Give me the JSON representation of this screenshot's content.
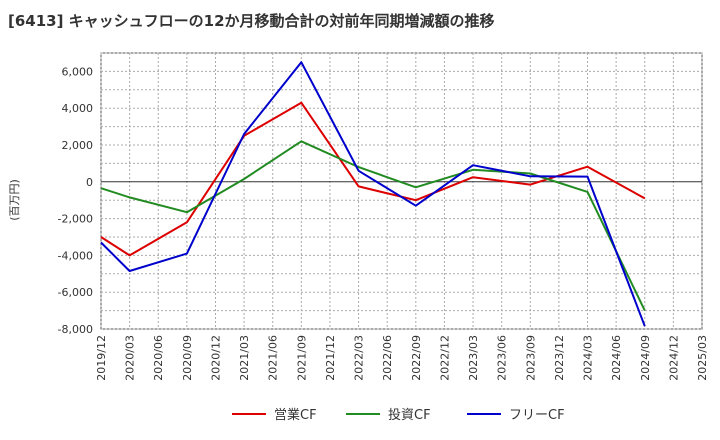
{
  "chart_data": {
    "type": "line",
    "title": "[6413]  キャッシュフローの12か月移動合計の対前年同期増減額の推移",
    "ylabel": "(百万円)",
    "xlabel": "",
    "ylim": [
      -8000,
      7000
    ],
    "yticks": [
      -8000,
      -6000,
      -4000,
      -2000,
      0,
      2000,
      4000,
      6000
    ],
    "ytick_labels": [
      "-8,000",
      "-6,000",
      "-4,000",
      "-2,000",
      "0",
      "2,000",
      "4,000",
      "6,000"
    ],
    "x_labels": [
      "2019/12",
      "2020/03",
      "2020/06",
      "2020/09",
      "2020/12",
      "2021/03",
      "2021/06",
      "2021/09",
      "2021/12",
      "2022/03",
      "2022/06",
      "2022/09",
      "2022/12",
      "2023/03",
      "2023/06",
      "2023/09",
      "2023/12",
      "2024/03",
      "2024/06",
      "2024/09",
      "2024/12",
      "2025/03"
    ],
    "grid": true,
    "legend_position": "bottom",
    "series": [
      {
        "name": "営業CF",
        "color": "#dd0000",
        "points": [
          {
            "x": "2019/12",
            "y": -3000
          },
          {
            "x": "2020/03",
            "y": -4000
          },
          {
            "x": "2020/09",
            "y": -2200
          },
          {
            "x": "2021/03",
            "y": 2500
          },
          {
            "x": "2021/09",
            "y": 4300
          },
          {
            "x": "2022/03",
            "y": -250
          },
          {
            "x": "2022/09",
            "y": -1000
          },
          {
            "x": "2023/03",
            "y": 250
          },
          {
            "x": "2023/09",
            "y": -150
          },
          {
            "x": "2024/03",
            "y": 820
          },
          {
            "x": "2024/09",
            "y": -900
          }
        ]
      },
      {
        "name": "投資CF",
        "color": "#228b22",
        "points": [
          {
            "x": "2019/12",
            "y": -350
          },
          {
            "x": "2020/03",
            "y": -850
          },
          {
            "x": "2020/09",
            "y": -1650
          },
          {
            "x": "2021/03",
            "y": 150
          },
          {
            "x": "2021/09",
            "y": 2200
          },
          {
            "x": "2022/03",
            "y": 800
          },
          {
            "x": "2022/09",
            "y": -300
          },
          {
            "x": "2023/03",
            "y": 650
          },
          {
            "x": "2023/09",
            "y": 450
          },
          {
            "x": "2024/03",
            "y": -550
          },
          {
            "x": "2024/09",
            "y": -7000
          }
        ]
      },
      {
        "name": "フリーCF",
        "color": "#0000cc",
        "points": [
          {
            "x": "2019/12",
            "y": -3300
          },
          {
            "x": "2020/03",
            "y": -4850
          },
          {
            "x": "2020/09",
            "y": -3900
          },
          {
            "x": "2021/03",
            "y": 2600
          },
          {
            "x": "2021/09",
            "y": 6500
          },
          {
            "x": "2022/03",
            "y": 600
          },
          {
            "x": "2022/09",
            "y": -1300
          },
          {
            "x": "2023/03",
            "y": 900
          },
          {
            "x": "2023/09",
            "y": 300
          },
          {
            "x": "2024/03",
            "y": 280
          },
          {
            "x": "2024/09",
            "y": -7850
          }
        ]
      }
    ]
  }
}
